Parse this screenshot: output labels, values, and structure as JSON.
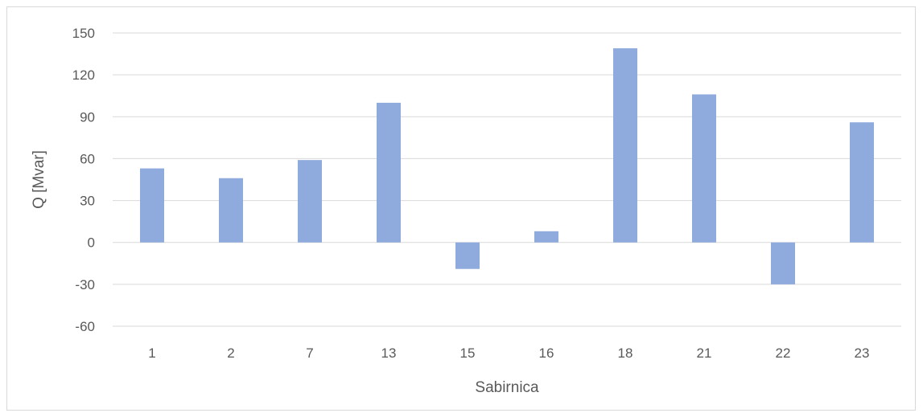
{
  "chart_data": {
    "type": "bar",
    "title": "",
    "xlabel": "Sabirnica",
    "ylabel": "Q [Mvar]",
    "categories": [
      "1",
      "2",
      "7",
      "13",
      "15",
      "16",
      "18",
      "21",
      "22",
      "23"
    ],
    "values": [
      53,
      46,
      59,
      100,
      -19,
      8,
      139,
      106,
      -30,
      86
    ],
    "ylim": [
      -60,
      150
    ],
    "yticks": [
      -60,
      -30,
      0,
      30,
      60,
      90,
      120,
      150
    ],
    "grid": true,
    "legend": "none",
    "colors": {
      "bar": "#8faadc",
      "grid": "#d9d9d9",
      "text": "#595959"
    }
  }
}
